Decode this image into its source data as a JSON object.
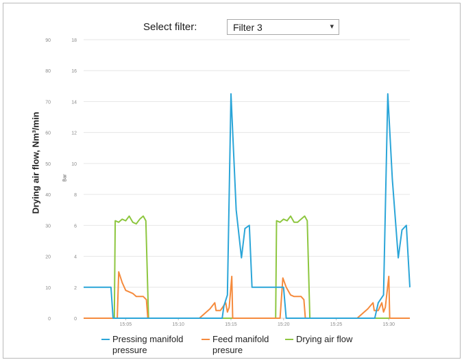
{
  "filter": {
    "label": "Select filter:",
    "selected": "Filter 3"
  },
  "chart_data": {
    "type": "line",
    "y_left": {
      "label": "Drying air flow, Nm³/min",
      "range": [
        0,
        90
      ],
      "ticks": [
        "0",
        "10",
        "20",
        "30",
        "40",
        "50",
        "60",
        "70",
        "80",
        "90"
      ]
    },
    "y_right": {
      "label": "Bar",
      "range": [
        0,
        18
      ],
      "ticks": [
        "0",
        "2",
        "4",
        "6",
        "8",
        "10",
        "12",
        "14",
        "16",
        "18"
      ]
    },
    "x": {
      "range": [
        "15:01",
        "15:32"
      ],
      "ticks": [
        "15:05",
        "15:10",
        "15:15",
        "15:20",
        "15:25",
        "15:30"
      ]
    },
    "grid": true,
    "legend_position": "bottom",
    "series": [
      {
        "name": "Pressing manifold pressure",
        "axis": "right",
        "color": "#2aa5d8",
        "points": [
          [
            "15:01:00",
            2.0
          ],
          [
            "15:03:36",
            2.0
          ],
          [
            "15:03:48",
            0.0
          ],
          [
            "15:04:00",
            0.0
          ],
          [
            "15:14:10",
            0.0
          ],
          [
            "15:14:20",
            0.8
          ],
          [
            "15:14:40",
            1.5
          ],
          [
            "15:15:00",
            14.5
          ],
          [
            "15:15:30",
            7.0
          ],
          [
            "15:16:00",
            3.9
          ],
          [
            "15:16:20",
            5.8
          ],
          [
            "15:16:45",
            6.0
          ],
          [
            "15:17:00",
            2.0
          ],
          [
            "15:20:00",
            2.0
          ],
          [
            "15:20:15",
            0.0
          ],
          [
            "15:28:40",
            0.0
          ],
          [
            "15:29:00",
            1.0
          ],
          [
            "15:29:30",
            1.5
          ],
          [
            "15:29:54",
            14.5
          ],
          [
            "15:30:20",
            9.0
          ],
          [
            "15:30:54",
            3.9
          ],
          [
            "15:31:15",
            5.7
          ],
          [
            "15:31:40",
            6.0
          ],
          [
            "15:32:00",
            2.0
          ]
        ]
      },
      {
        "name": "Feed manifold presure",
        "axis": "right",
        "color": "#f58a3c",
        "points": [
          [
            "15:01:00",
            0.0
          ],
          [
            "15:04:12",
            0.0
          ],
          [
            "15:04:20",
            3.0
          ],
          [
            "15:04:40",
            2.3
          ],
          [
            "15:05:00",
            1.8
          ],
          [
            "15:05:40",
            1.6
          ],
          [
            "15:06:00",
            1.4
          ],
          [
            "15:06:40",
            1.4
          ],
          [
            "15:06:58",
            1.2
          ],
          [
            "15:07:06",
            0.0
          ],
          [
            "15:12:00",
            0.0
          ],
          [
            "15:13:00",
            0.6
          ],
          [
            "15:13:28",
            1.0
          ],
          [
            "15:13:35",
            0.5
          ],
          [
            "15:14:00",
            0.5
          ],
          [
            "15:14:30",
            1.0
          ],
          [
            "15:14:40",
            0.4
          ],
          [
            "15:14:50",
            0.7
          ],
          [
            "15:15:05",
            2.7
          ],
          [
            "15:15:10",
            0.0
          ],
          [
            "15:19:40",
            0.0
          ],
          [
            "15:19:56",
            2.6
          ],
          [
            "15:20:15",
            2.0
          ],
          [
            "15:20:40",
            1.5
          ],
          [
            "15:21:00",
            1.4
          ],
          [
            "15:21:40",
            1.4
          ],
          [
            "15:21:56",
            1.2
          ],
          [
            "15:22:04",
            0.0
          ],
          [
            "15:27:00",
            0.0
          ],
          [
            "15:28:00",
            0.6
          ],
          [
            "15:28:30",
            1.0
          ],
          [
            "15:28:37",
            0.5
          ],
          [
            "15:29:00",
            0.5
          ],
          [
            "15:29:20",
            1.0
          ],
          [
            "15:29:30",
            0.4
          ],
          [
            "15:29:40",
            0.7
          ],
          [
            "15:30:00",
            2.7
          ],
          [
            "15:30:05",
            0.0
          ],
          [
            "15:32:00",
            0.0
          ]
        ]
      },
      {
        "name": "Drying air flow",
        "axis": "left",
        "color": "#8dc63f",
        "points": [
          [
            "15:01:00",
            0.0
          ],
          [
            "15:03:55",
            0.0
          ],
          [
            "15:04:00",
            31.5
          ],
          [
            "15:04:20",
            31.0
          ],
          [
            "15:04:40",
            32.0
          ],
          [
            "15:05:00",
            31.5
          ],
          [
            "15:05:20",
            33.0
          ],
          [
            "15:05:40",
            31.0
          ],
          [
            "15:06:00",
            30.5
          ],
          [
            "15:06:20",
            32.0
          ],
          [
            "15:06:40",
            33.0
          ],
          [
            "15:06:55",
            31.5
          ],
          [
            "15:07:10",
            0.0
          ],
          [
            "15:19:15",
            0.0
          ],
          [
            "15:19:20",
            31.5
          ],
          [
            "15:19:40",
            31.0
          ],
          [
            "15:20:00",
            32.0
          ],
          [
            "15:20:20",
            31.5
          ],
          [
            "15:20:40",
            33.0
          ],
          [
            "15:21:00",
            31.0
          ],
          [
            "15:21:20",
            31.0
          ],
          [
            "15:21:40",
            32.0
          ],
          [
            "15:22:00",
            33.0
          ],
          [
            "15:22:15",
            31.5
          ],
          [
            "15:22:30",
            0.0
          ],
          [
            "15:32:00",
            0.0
          ]
        ]
      }
    ]
  }
}
